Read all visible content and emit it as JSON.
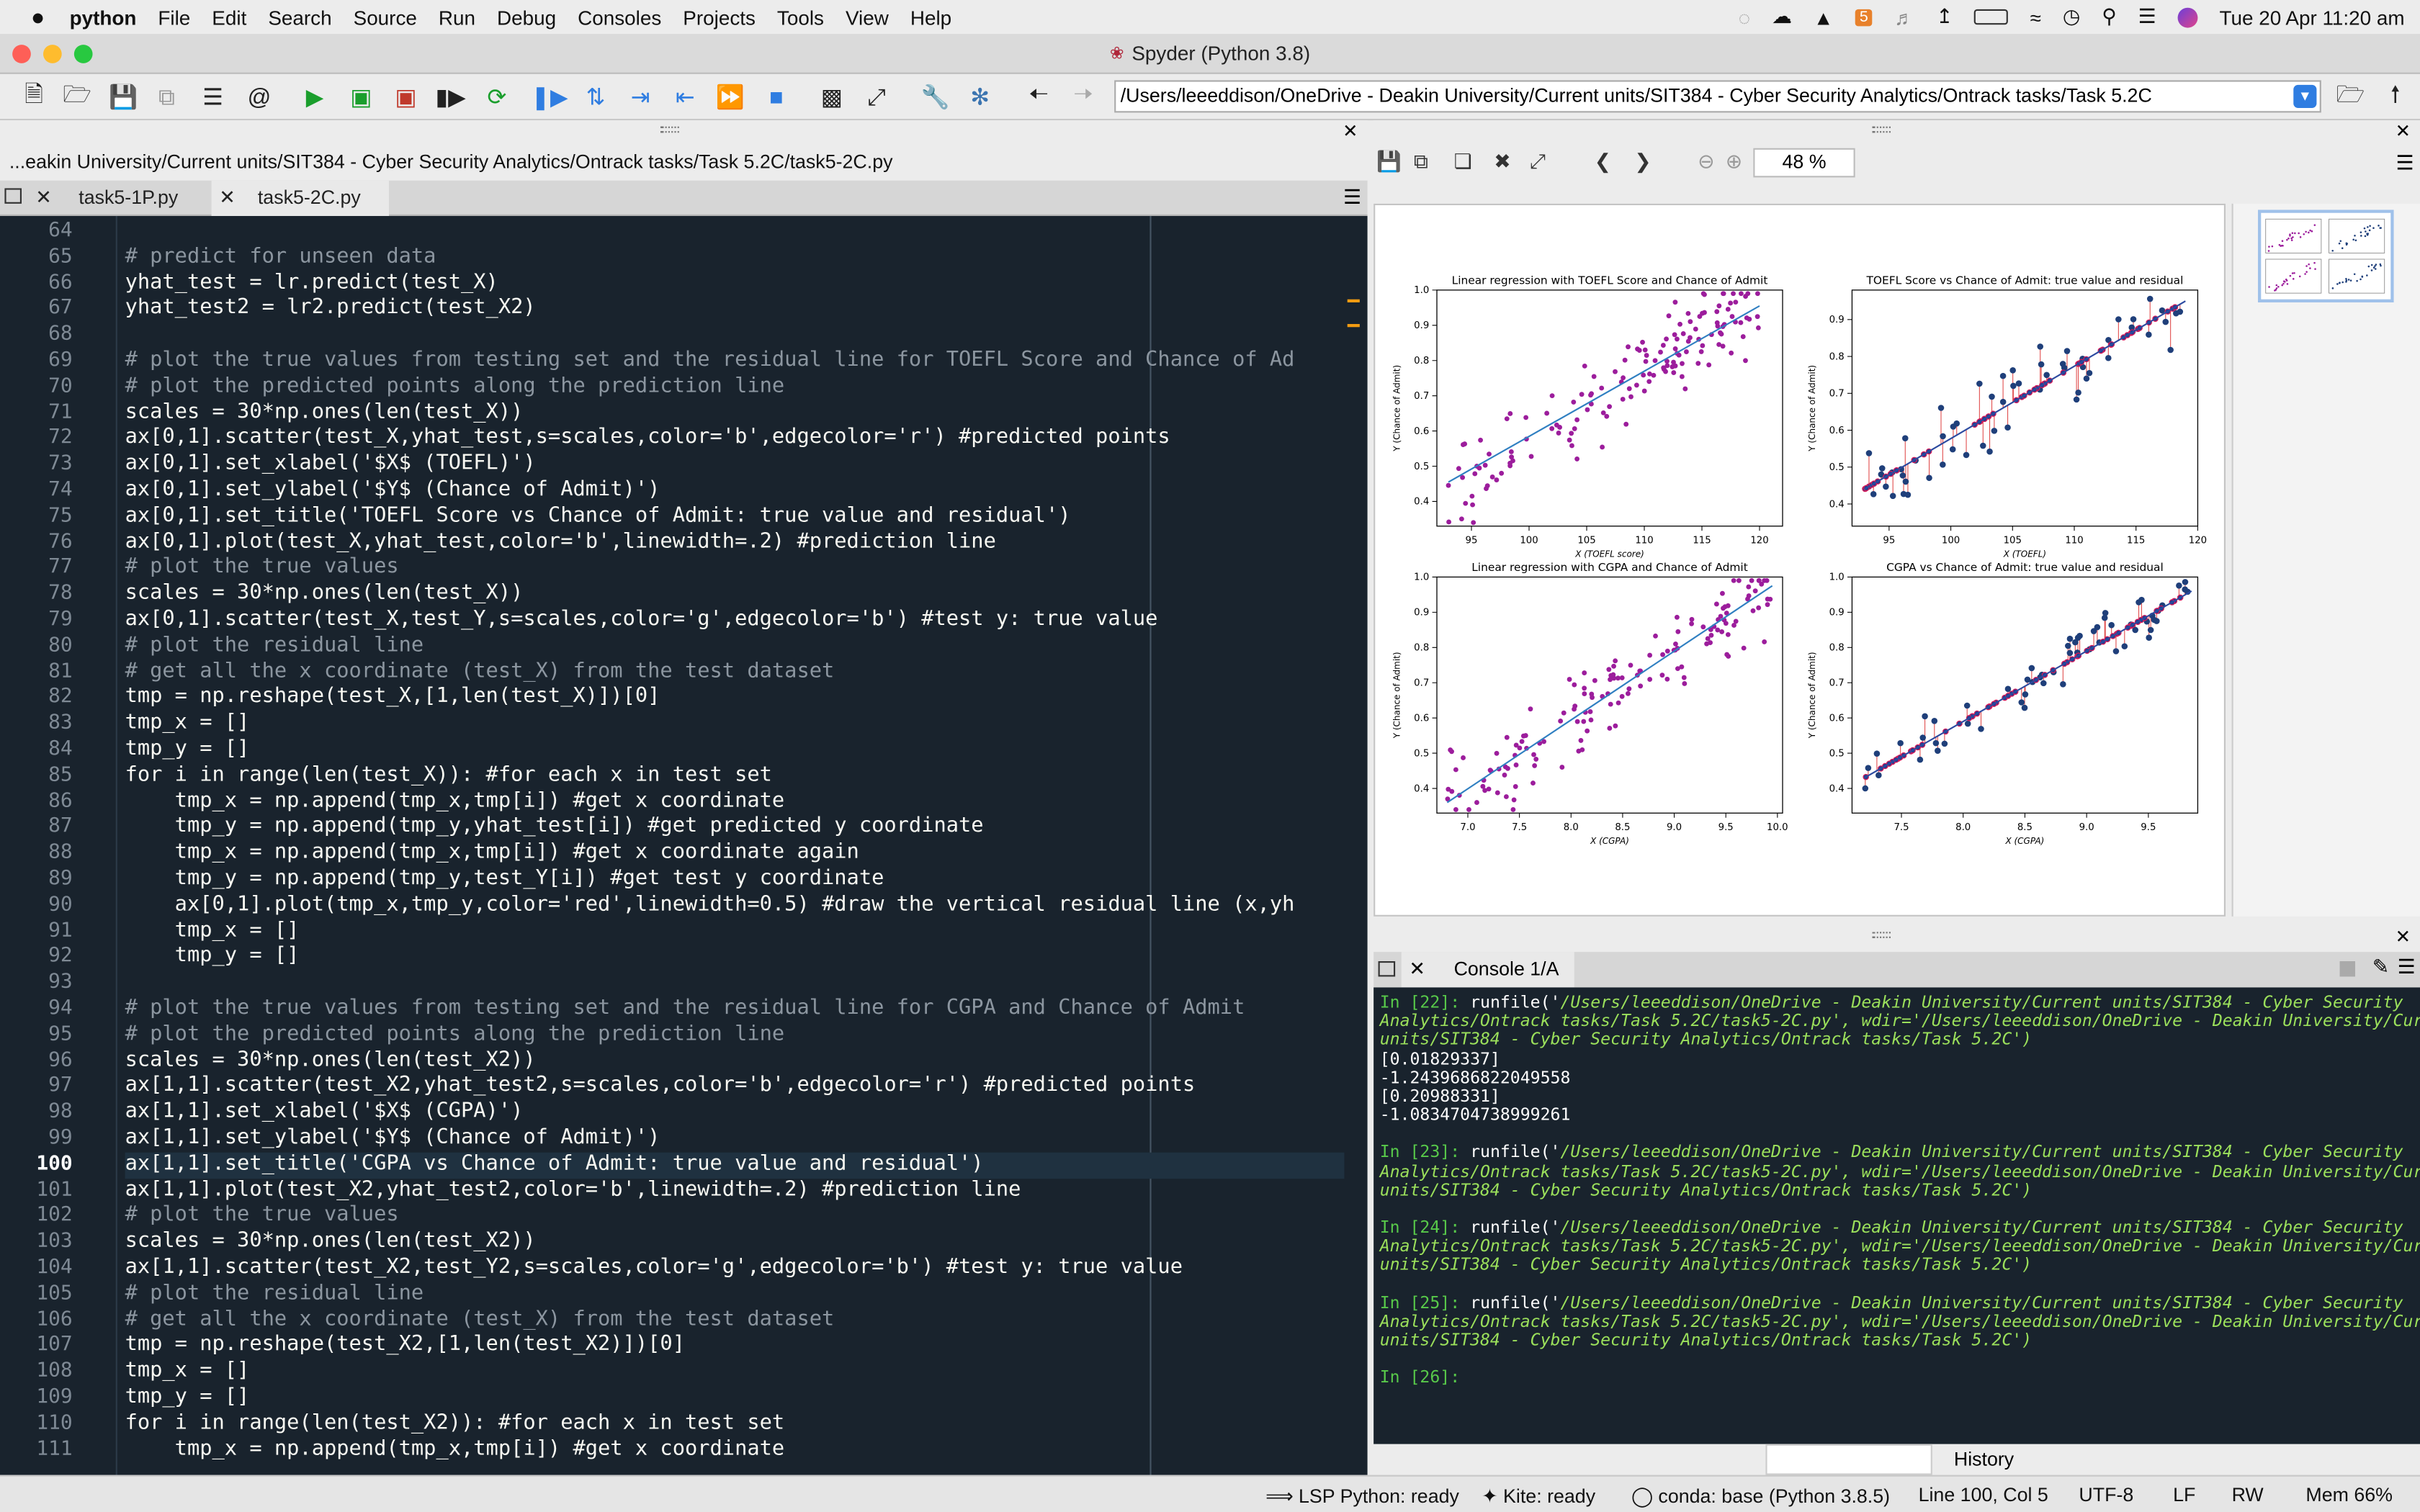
{
  "menubar": {
    "app": "python",
    "items": [
      "File",
      "Edit",
      "Search",
      "Source",
      "Run",
      "Debug",
      "Consoles",
      "Projects",
      "Tools",
      "View",
      "Help"
    ],
    "clock": "Tue 20 Apr  11:20 am"
  },
  "window": {
    "title": "Spyder (Python 3.8)"
  },
  "toolbar": {
    "path": "/Users/leeeddison/OneDrive - Deakin University/Current units/SIT384 - Cyber Security Analytics/Ontrack tasks/Task 5.2C"
  },
  "editor": {
    "file_path": "...eakin University/Current units/SIT384 - Cyber Security Analytics/Ontrack tasks/Task 5.2C/task5-2C.py",
    "tabs": [
      "task5-1P.py",
      "task5-2C.py"
    ],
    "current_line": 100,
    "lines": [
      {
        "n": "64",
        "t": ""
      },
      {
        "n": "65",
        "t": "# predict for unseen data"
      },
      {
        "n": "66",
        "t": "yhat_test = lr.predict(test_X)"
      },
      {
        "n": "67",
        "t": "yhat_test2 = lr2.predict(test_X2)"
      },
      {
        "n": "68",
        "t": ""
      },
      {
        "n": "69",
        "t": "# plot the true values from testing set and the residual line for TOEFL Score and Chance of Ad"
      },
      {
        "n": "70",
        "t": "# plot the predicted points along the prediction line"
      },
      {
        "n": "71",
        "t": "scales = 30*np.ones(len(test_X))"
      },
      {
        "n": "72",
        "t": "ax[0,1].scatter(test_X,yhat_test,s=scales,color='b',edgecolor='r') #predicted points"
      },
      {
        "n": "73",
        "t": "ax[0,1].set_xlabel('$X$ (TOEFL)')"
      },
      {
        "n": "74",
        "t": "ax[0,1].set_ylabel('$Y$ (Chance of Admit)')"
      },
      {
        "n": "75",
        "t": "ax[0,1].set_title('TOEFL Score vs Chance of Admit: true value and residual')"
      },
      {
        "n": "76",
        "t": "ax[0,1].plot(test_X,yhat_test,color='b',linewidth=.2) #prediction line"
      },
      {
        "n": "77",
        "t": "# plot the true values"
      },
      {
        "n": "78",
        "t": "scales = 30*np.ones(len(test_X))"
      },
      {
        "n": "79",
        "t": "ax[0,1].scatter(test_X,test_Y,s=scales,color='g',edgecolor='b') #test y: true value"
      },
      {
        "n": "80",
        "t": "# plot the residual line"
      },
      {
        "n": "81",
        "t": "# get all the x coordinate (test_X) from the test dataset"
      },
      {
        "n": "82",
        "t": "tmp = np.reshape(test_X,[1,len(test_X)])[0]"
      },
      {
        "n": "83",
        "t": "tmp_x = []"
      },
      {
        "n": "84",
        "t": "tmp_y = []"
      },
      {
        "n": "85",
        "t": "for i in range(len(test_X)): #for each x in test set"
      },
      {
        "n": "86",
        "t": "    tmp_x = np.append(tmp_x,tmp[i]) #get x coordinate"
      },
      {
        "n": "87",
        "t": "    tmp_y = np.append(tmp_y,yhat_test[i]) #get predicted y coordinate"
      },
      {
        "n": "88",
        "t": "    tmp_x = np.append(tmp_x,tmp[i]) #get x coordinate again"
      },
      {
        "n": "89",
        "t": "    tmp_y = np.append(tmp_y,test_Y[i]) #get test y coordinate"
      },
      {
        "n": "90",
        "t": "    ax[0,1].plot(tmp_x,tmp_y,color='red',linewidth=0.5) #draw the vertical residual line (x,yh"
      },
      {
        "n": "91",
        "t": "    tmp_x = []"
      },
      {
        "n": "92",
        "t": "    tmp_y = []"
      },
      {
        "n": "93",
        "t": ""
      },
      {
        "n": "94",
        "t": "# plot the true values from testing set and the residual line for CGPA and Chance of Admit"
      },
      {
        "n": "95",
        "t": "# plot the predicted points along the prediction line"
      },
      {
        "n": "96",
        "t": "scales = 30*np.ones(len(test_X2))"
      },
      {
        "n": "97",
        "t": "ax[1,1].scatter(test_X2,yhat_test2,s=scales,color='b',edgecolor='r') #predicted points"
      },
      {
        "n": "98",
        "t": "ax[1,1].set_xlabel('$X$ (CGPA)')"
      },
      {
        "n": "99",
        "t": "ax[1,1].set_ylabel('$Y$ (Chance of Admit)')"
      },
      {
        "n": "100",
        "t": "ax[1,1].set_title('CGPA vs Chance of Admit: true value and residual')"
      },
      {
        "n": "101",
        "t": "ax[1,1].plot(test_X2,yhat_test2,color='b',linewidth=.2) #prediction line"
      },
      {
        "n": "102",
        "t": "# plot the true values"
      },
      {
        "n": "103",
        "t": "scales = 30*np.ones(len(test_X2))"
      },
      {
        "n": "104",
        "t": "ax[1,1].scatter(test_X2,test_Y2,s=scales,color='g',edgecolor='b') #test y: true value"
      },
      {
        "n": "105",
        "t": "# plot the residual line"
      },
      {
        "n": "106",
        "t": "# get all the x coordinate (test_X) from the test dataset"
      },
      {
        "n": "107",
        "t": "tmp = np.reshape(test_X2,[1,len(test_X2)])[0]"
      },
      {
        "n": "108",
        "t": "tmp_x = []"
      },
      {
        "n": "109",
        "t": "tmp_y = []"
      },
      {
        "n": "110",
        "t": "for i in range(len(test_X2)): #for each x in test set"
      },
      {
        "n": "111",
        "t": "    tmp_x = np.append(tmp_x,tmp[i]) #get x coordinate"
      }
    ]
  },
  "plots": {
    "zoom": "48 %"
  },
  "chart_data": [
    {
      "type": "scatter",
      "title": "Linear regression with TOEFL Score and Chance of Admit",
      "xlabel": "X (TOEFL score)",
      "ylabel": "Y (Chance of Admit)",
      "xticks": [
        "95",
        "100",
        "105",
        "110",
        "115",
        "120"
      ],
      "yticks": [
        "0.4",
        "0.5",
        "0.6",
        "0.7",
        "0.8",
        "0.9",
        "1.0"
      ],
      "xlim": [
        92,
        122
      ],
      "ylim": [
        0.33,
        1.0
      ],
      "line": {
        "x": [
          93,
          120
        ],
        "y": [
          0.455,
          0.955
        ]
      },
      "colors": {
        "points": "#9c1d9c",
        "line": "#2f7fc1"
      }
    },
    {
      "type": "scatter",
      "title": "TOEFL Score vs Chance of Admit: true value and residual",
      "xlabel": "X (TOEFL)",
      "ylabel": "Y (Chance of Admit)",
      "xticks": [
        "95",
        "100",
        "105",
        "110",
        "115",
        "120"
      ],
      "yticks": [
        "0.4",
        "0.5",
        "0.6",
        "0.7",
        "0.8",
        "0.9"
      ],
      "xlim": [
        92,
        120
      ],
      "ylim": [
        0.34,
        0.98
      ],
      "line": {
        "x": [
          93,
          119
        ],
        "y": [
          0.44,
          0.95
        ]
      },
      "colors": {
        "points": "#1f3f7a",
        "line": "#d61b5a"
      }
    },
    {
      "type": "scatter",
      "title": "Linear regression with CGPA and Chance of Admit",
      "xlabel": "X (CGPA)",
      "ylabel": "Y (Chance of Admit)",
      "xticks": [
        "7.0",
        "7.5",
        "8.0",
        "8.5",
        "9.0",
        "9.5",
        "10.0"
      ],
      "yticks": [
        "0.4",
        "0.5",
        "0.6",
        "0.7",
        "0.8",
        "0.9",
        "1.0"
      ],
      "xlim": [
        6.7,
        10.05
      ],
      "ylim": [
        0.33,
        1.0
      ],
      "line": {
        "x": [
          6.8,
          9.95
        ],
        "y": [
          0.36,
          0.975
        ]
      },
      "colors": {
        "points": "#9c1d9c",
        "line": "#2f7fc1"
      }
    },
    {
      "type": "scatter",
      "title": "CGPA vs Chance of Admit: true value and residual",
      "xlabel": "X (CGPA)",
      "ylabel": "Y (Chance of Admit)",
      "xticks": [
        "7.5",
        "8.0",
        "8.5",
        "9.0",
        "9.5"
      ],
      "yticks": [
        "0.4",
        "0.5",
        "0.6",
        "0.7",
        "0.8",
        "0.9",
        "1.0"
      ],
      "xlim": [
        7.1,
        9.9
      ],
      "ylim": [
        0.33,
        1.0
      ],
      "line": {
        "x": [
          7.2,
          9.85
        ],
        "y": [
          0.43,
          0.96
        ]
      },
      "colors": {
        "points": "#1f3f7a",
        "line": "#d61b5a"
      }
    }
  ],
  "console": {
    "tab": "Console 1/A",
    "history_tab": "History",
    "entries": [
      {
        "prompt": "In [22]:",
        "lines": [
          [
            "runfile('",
            "/Users/leeeddison/OneDrive - Deakin University/Current units/SIT384 - Cyber Security"
          ],
          [
            "",
            "Analytics/Ontrack tasks/Task 5.2C/task5-2C.py', wdir='/Users/leeeddison/OneDrive - Deakin University/Current"
          ],
          [
            "",
            "units/SIT384 - Cyber Security Analytics/Ontrack tasks/Task 5.2C')"
          ]
        ],
        "output": [
          "[0.01829337]",
          "-1.2439686822049558",
          "[0.20988331]",
          "-1.0834704738999261"
        ]
      },
      {
        "prompt": "In [23]:",
        "lines": [
          [
            "runfile('",
            "/Users/leeeddison/OneDrive - Deakin University/Current units/SIT384 - Cyber Security"
          ],
          [
            "",
            "Analytics/Ontrack tasks/Task 5.2C/task5-2C.py', wdir='/Users/leeeddison/OneDrive - Deakin University/Current"
          ],
          [
            "",
            "units/SIT384 - Cyber Security Analytics/Ontrack tasks/Task 5.2C')"
          ]
        ],
        "output": []
      },
      {
        "prompt": "In [24]:",
        "lines": [
          [
            "runfile('",
            "/Users/leeeddison/OneDrive - Deakin University/Current units/SIT384 - Cyber Security"
          ],
          [
            "",
            "Analytics/Ontrack tasks/Task 5.2C/task5-2C.py', wdir='/Users/leeeddison/OneDrive - Deakin University/Current"
          ],
          [
            "",
            "units/SIT384 - Cyber Security Analytics/Ontrack tasks/Task 5.2C')"
          ]
        ],
        "output": []
      },
      {
        "prompt": "In [25]:",
        "lines": [
          [
            "runfile('",
            "/Users/leeeddison/OneDrive - Deakin University/Current units/SIT384 - Cyber Security"
          ],
          [
            "",
            "Analytics/Ontrack tasks/Task 5.2C/task5-2C.py', wdir='/Users/leeeddison/OneDrive - Deakin University/Current"
          ],
          [
            "",
            "units/SIT384 - Cyber Security Analytics/Ontrack tasks/Task 5.2C')"
          ]
        ],
        "output": []
      },
      {
        "prompt": "In [26]:",
        "lines": [],
        "output": []
      }
    ]
  },
  "status": {
    "lsp": "LSP Python: ready",
    "kite": "Kite: ready",
    "conda": "conda: base (Python 3.8.5)",
    "position": "Line 100, Col 5",
    "encoding": "UTF-8",
    "eol": "LF",
    "rw": "RW",
    "mem": "Mem 66%"
  }
}
